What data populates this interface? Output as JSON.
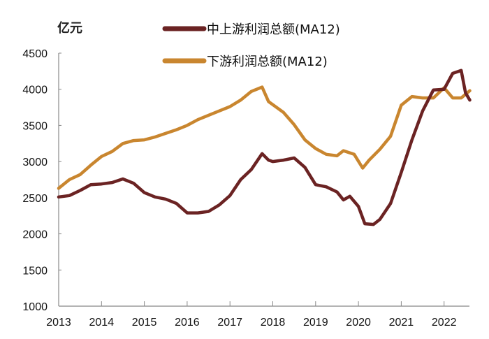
{
  "chart_data": {
    "type": "line",
    "title": "",
    "xlabel": "",
    "ylabel": "亿元",
    "xlim": [
      2013,
      2022.6
    ],
    "ylim": [
      1000,
      4500
    ],
    "yticks": [
      1000,
      1500,
      2000,
      2500,
      3000,
      3500,
      4000,
      4500
    ],
    "xticks": [
      "2013",
      "2014",
      "2015",
      "2016",
      "2017",
      "2018",
      "2019",
      "2020",
      "2021",
      "2022"
    ],
    "grid": false,
    "legend_position": "top",
    "series": [
      {
        "name": "中上游利润总额(MA12)",
        "color": "#6b2323",
        "x": [
          2013.0,
          2013.25,
          2013.5,
          2013.75,
          2014.0,
          2014.25,
          2014.5,
          2014.75,
          2015.0,
          2015.25,
          2015.5,
          2015.75,
          2016.0,
          2016.25,
          2016.5,
          2016.75,
          2017.0,
          2017.25,
          2017.5,
          2017.75,
          2017.9,
          2018.0,
          2018.25,
          2018.5,
          2018.75,
          2019.0,
          2019.25,
          2019.5,
          2019.65,
          2019.8,
          2020.0,
          2020.15,
          2020.35,
          2020.5,
          2020.75,
          2021.0,
          2021.25,
          2021.5,
          2021.75,
          2022.0,
          2022.2,
          2022.4,
          2022.5,
          2022.6
        ],
        "y": [
          2510,
          2530,
          2600,
          2680,
          2690,
          2710,
          2760,
          2700,
          2570,
          2510,
          2480,
          2420,
          2290,
          2290,
          2310,
          2400,
          2530,
          2750,
          2890,
          3110,
          3020,
          3000,
          3020,
          3050,
          2920,
          2680,
          2650,
          2580,
          2470,
          2520,
          2380,
          2140,
          2130,
          2200,
          2420,
          2850,
          3300,
          3700,
          3990,
          4000,
          4220,
          4260,
          3950,
          3850
        ]
      },
      {
        "name": "下游利润总额(MA12)",
        "color": "#c9862f",
        "x": [
          2013.0,
          2013.25,
          2013.5,
          2013.75,
          2014.0,
          2014.25,
          2014.5,
          2014.75,
          2015.0,
          2015.25,
          2015.5,
          2015.75,
          2016.0,
          2016.25,
          2016.5,
          2016.75,
          2017.0,
          2017.25,
          2017.5,
          2017.75,
          2017.9,
          2018.25,
          2018.5,
          2018.75,
          2019.0,
          2019.25,
          2019.5,
          2019.65,
          2019.9,
          2020.1,
          2020.25,
          2020.5,
          2020.75,
          2021.0,
          2021.25,
          2021.5,
          2021.75,
          2022.0,
          2022.2,
          2022.4,
          2022.6
        ],
        "y": [
          2630,
          2750,
          2820,
          2950,
          3070,
          3140,
          3250,
          3290,
          3300,
          3340,
          3390,
          3440,
          3500,
          3580,
          3640,
          3700,
          3760,
          3850,
          3970,
          4030,
          3830,
          3680,
          3510,
          3300,
          3180,
          3100,
          3080,
          3150,
          3100,
          2910,
          3020,
          3170,
          3350,
          3780,
          3900,
          3880,
          3880,
          4020,
          3880,
          3880,
          3980
        ]
      }
    ]
  }
}
